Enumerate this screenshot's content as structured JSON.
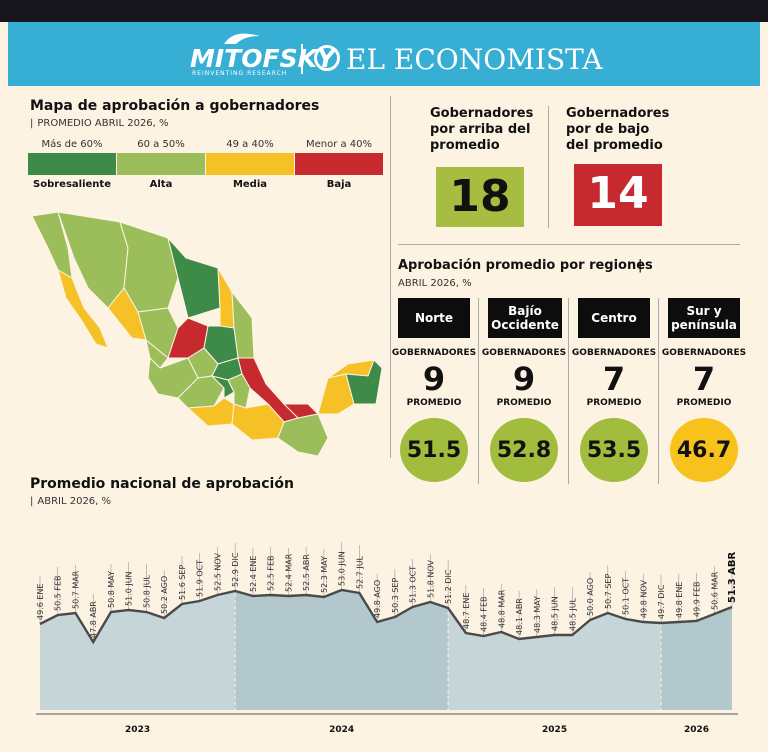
{
  "header": {
    "brand1": "MITOFSKY",
    "brand1_sub": "REINVENTING RESEARCH",
    "brand2": "EL ECONOMISTA"
  },
  "map_section": {
    "title": "Mapa de aprobación a gobernadores",
    "subtitle": "PROMEDIO ABRIL 2026, %",
    "legend": [
      {
        "range": "Más de 60%",
        "name": "Sobresaliente",
        "color": "#3e8a49"
      },
      {
        "range": "60 a 50%",
        "name": "Alta",
        "color": "#9cbe5a"
      },
      {
        "range": "49 a 40%",
        "name": "Media",
        "color": "#f6c126"
      },
      {
        "range": "Menor a 40%",
        "name": "Baja",
        "color": "#c62a2e"
      }
    ]
  },
  "counts": {
    "above_title_1": "Gobernadores",
    "above_title_2": "por arriba del",
    "above_title_3": "promedio",
    "above_value": "18",
    "below_title_1": "Gobernadores",
    "below_title_2": "por de bajo",
    "below_title_3": "del promedio",
    "below_value": "14"
  },
  "regions_section": {
    "title": "Aprobación promedio por regiones",
    "subtitle": "ABRIL 2026, %",
    "gob_label": "GOBERNADORES",
    "prom_label": "PROMEDIO",
    "regions": [
      {
        "name": "Norte",
        "governors": "9",
        "average": "51.5",
        "color": "#a2bd3d"
      },
      {
        "name": "Bajío Occidente",
        "governors": "9",
        "average": "52.8",
        "color": "#a2bd3d"
      },
      {
        "name": "Centro",
        "governors": "7",
        "average": "53.5",
        "color": "#a2bd3d"
      },
      {
        "name": "Sur y península",
        "governors": "7",
        "average": "46.7",
        "color": "#f7c21c"
      }
    ]
  },
  "trend_section": {
    "title": "Promedio nacional de aprobación",
    "subtitle": "ABRIL 2026, %"
  },
  "chart_data": {
    "type": "area",
    "title": "Promedio nacional de aprobación",
    "subtitle": "ABRIL 2026, %",
    "ylim": [
      44,
      56
    ],
    "year_labels": [
      "2023",
      "2024",
      "2025",
      "2026"
    ],
    "points": [
      {
        "label": "49.6 ENE",
        "value": 49.6
      },
      {
        "label": "50.5 FEB",
        "value": 50.5
      },
      {
        "label": "50.7 MAR",
        "value": 50.7
      },
      {
        "label": "47.8 ABR",
        "value": 47.8
      },
      {
        "label": "50.8 MAY",
        "value": 50.8
      },
      {
        "label": "51.0 JUN",
        "value": 51.0
      },
      {
        "label": "50.8 JUL",
        "value": 50.8
      },
      {
        "label": "50.2 AGO",
        "value": 50.2
      },
      {
        "label": "51.6 SEP",
        "value": 51.6
      },
      {
        "label": "51.9 OCT",
        "value": 51.9
      },
      {
        "label": "52.5 NOV",
        "value": 52.5
      },
      {
        "label": "52.9 DIC",
        "value": 52.9
      },
      {
        "label": "52.4 ENE",
        "value": 52.4
      },
      {
        "label": "52.5 FEB",
        "value": 52.5
      },
      {
        "label": "52.4 MAR",
        "value": 52.4
      },
      {
        "label": "52.5 ABR",
        "value": 52.5
      },
      {
        "label": "52.3 MAY",
        "value": 52.3
      },
      {
        "label": "53.0 JUN",
        "value": 53.0
      },
      {
        "label": "52.7 JUL",
        "value": 52.7
      },
      {
        "label": "49.8 AGO",
        "value": 49.8
      },
      {
        "label": "50.3 SEP",
        "value": 50.3
      },
      {
        "label": "51.3 OCT",
        "value": 51.3
      },
      {
        "label": "51.8 NOV",
        "value": 51.8
      },
      {
        "label": "51.2 DIC",
        "value": 51.2
      },
      {
        "label": "48.7 ENE",
        "value": 48.7
      },
      {
        "label": "48.4 FEB",
        "value": 48.4
      },
      {
        "label": "48.8 MAR",
        "value": 48.8
      },
      {
        "label": "48.1 ABR",
        "value": 48.1
      },
      {
        "label": "48.3 MAY",
        "value": 48.3
      },
      {
        "label": "48.5 JUN",
        "value": 48.5
      },
      {
        "label": "48.5 JUL",
        "value": 48.5
      },
      {
        "label": "50.0 AGO",
        "value": 50.0
      },
      {
        "label": "50.7 SEP",
        "value": 50.7
      },
      {
        "label": "50.1 OCT",
        "value": 50.1
      },
      {
        "label": "49.8 NOV",
        "value": 49.8
      },
      {
        "label": "49.7 DIC",
        "value": 49.7
      },
      {
        "label": "49.8 ENE",
        "value": 49.8
      },
      {
        "label": "49.9 FEB",
        "value": 49.9
      },
      {
        "label": "50.6 MAR",
        "value": 50.6
      },
      {
        "label": "51.3 ABR",
        "value": 51.3
      }
    ],
    "colors": {
      "line": "#4a4a4a",
      "fill_light": "#c6d6d8",
      "fill_dark": "#b3c8cc"
    }
  }
}
